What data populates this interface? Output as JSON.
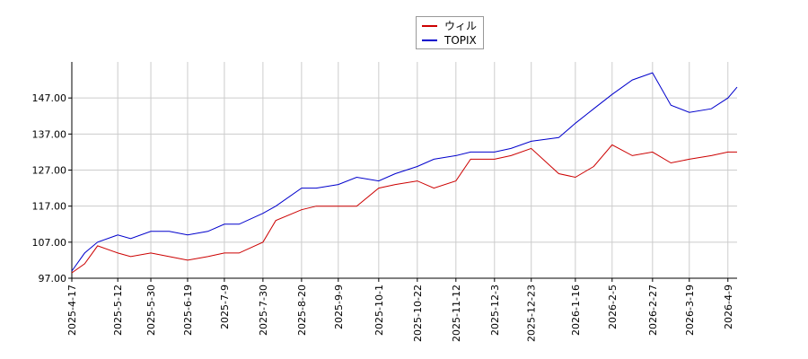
{
  "chart_data": {
    "type": "line",
    "title": "",
    "xlabel": "",
    "ylabel": "",
    "ylim": [
      97,
      157
    ],
    "y_ticks": [
      97.0,
      107.0,
      117.0,
      127.0,
      137.0,
      147.0
    ],
    "x_tick_labels": [
      "2025-4-17",
      "2025-5-12",
      "2025-5-30",
      "2025-6-19",
      "2025-7-9",
      "2025-7-30",
      "2025-8-20",
      "2025-9-9",
      "2025-10-1",
      "2025-10-22",
      "2025-11-12",
      "2025-12-3",
      "2025-12-23",
      "2026-1-16",
      "2026-2-5",
      "2026-2-27",
      "2026-3-19",
      "2026-4-9"
    ],
    "grid": true,
    "legend_position": "top-center",
    "x": [
      "2025-4-17",
      "2025-4-24",
      "2025-5-1",
      "2025-5-12",
      "2025-5-19",
      "2025-5-30",
      "2025-6-9",
      "2025-6-19",
      "2025-6-30",
      "2025-7-9",
      "2025-7-17",
      "2025-7-30",
      "2025-8-6",
      "2025-8-20",
      "2025-8-28",
      "2025-9-9",
      "2025-9-19",
      "2025-10-1",
      "2025-10-10",
      "2025-10-22",
      "2025-10-31",
      "2025-11-12",
      "2025-11-20",
      "2025-12-3",
      "2025-12-12",
      "2025-12-23",
      "2026-1-7",
      "2026-1-16",
      "2026-1-26",
      "2026-2-5",
      "2026-2-16",
      "2026-2-27",
      "2026-3-9",
      "2026-3-19",
      "2026-3-31",
      "2026-4-9",
      "2026-4-14"
    ],
    "series": [
      {
        "name": "ウィル",
        "color": "#cc0000",
        "values": [
          98.5,
          101,
          106,
          104,
          103,
          104,
          103,
          102,
          103,
          104,
          104,
          107,
          113,
          116,
          117,
          117,
          117,
          122,
          123,
          124,
          122,
          124,
          130,
          130,
          131,
          133,
          126,
          125,
          128,
          134,
          131,
          132,
          129,
          130,
          131,
          132,
          132
        ]
      },
      {
        "name": "TOPIX",
        "color": "#0000cc",
        "values": [
          99,
          104,
          107,
          109,
          108,
          110,
          110,
          109,
          110,
          112,
          112,
          115,
          117,
          122,
          122,
          123,
          125,
          124,
          126,
          128,
          130,
          131,
          132,
          132,
          133,
          135,
          136,
          140,
          144,
          148,
          152,
          154,
          145,
          143,
          144,
          147,
          150
        ]
      }
    ]
  },
  "legend": {
    "items": [
      {
        "label": "ウィル",
        "color": "#cc0000"
      },
      {
        "label": "TOPIX",
        "color": "#0000cc"
      }
    ]
  }
}
